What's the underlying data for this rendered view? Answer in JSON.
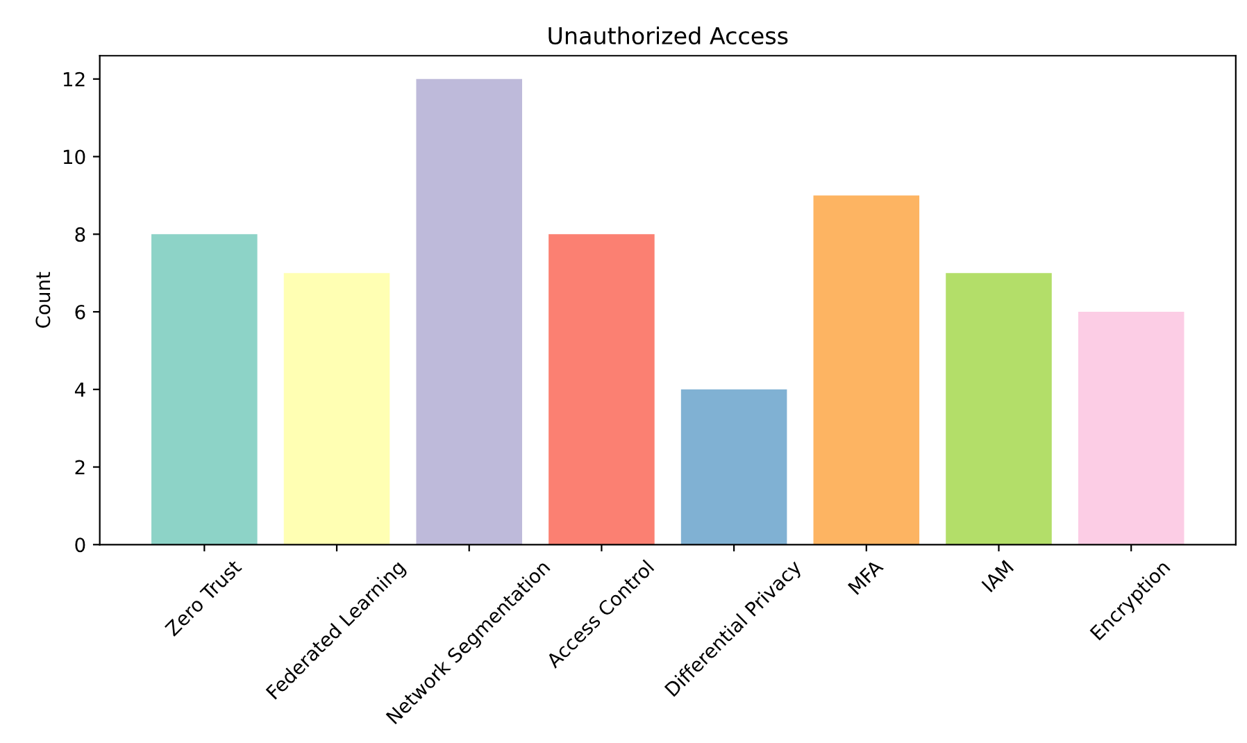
{
  "chart_data": {
    "type": "bar",
    "title": "Unauthorized Access",
    "ylabel": "Count",
    "categories": [
      "Zero Trust",
      "Federated Learning",
      "Network Segmentation",
      "Access Control",
      "Differential Privacy",
      "MFA",
      "IAM",
      "Encryption"
    ],
    "values": [
      8,
      7,
      12,
      8,
      4,
      9,
      7,
      6
    ],
    "colors": [
      "#8dd3c7",
      "#ffffb3",
      "#bebada",
      "#fb8072",
      "#80b1d3",
      "#fdb462",
      "#b3de69",
      "#fccde5"
    ],
    "ylim": [
      0,
      12.6
    ],
    "yticks": [
      0,
      2,
      4,
      6,
      8,
      10,
      12
    ],
    "grid": false,
    "legend": false
  }
}
